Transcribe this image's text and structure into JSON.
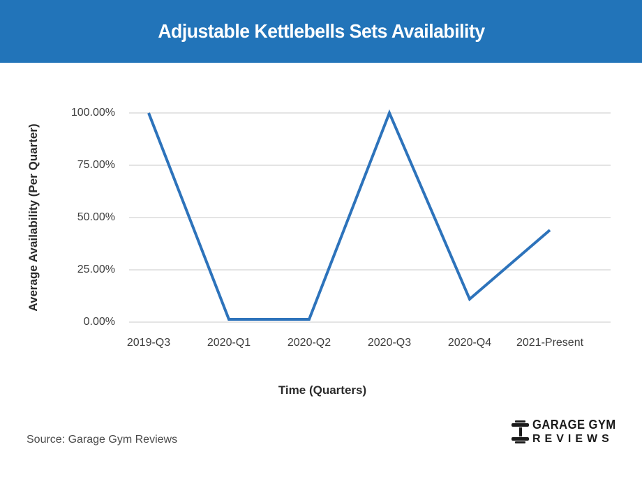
{
  "header": {
    "title": "Adjustable Kettlebells Sets Availability",
    "bg_color": "#2274b9",
    "text_color": "#ffffff"
  },
  "chart_data": {
    "type": "line",
    "title": "Adjustable Kettlebells Sets Availability",
    "categories": [
      "2019-Q3",
      "2020-Q1",
      "2020-Q2",
      "2020-Q3",
      "2020-Q4",
      "2021-Present"
    ],
    "series": [
      {
        "name": "Average Availability",
        "values": [
          100,
          0,
          0,
          100,
          11,
          44
        ]
      }
    ],
    "values_unit": "percent",
    "xlabel": "Time (Quarters)",
    "ylabel": "Average Availability (Per Quarter)",
    "ylim": [
      0,
      100
    ],
    "ytick_values": [
      0,
      25,
      50,
      75,
      100
    ],
    "ytick_labels": [
      "0.00%",
      "25.00%",
      "50.00%",
      "75.00%",
      "100.00%"
    ],
    "grid": true,
    "legend_position": "none",
    "line_color": "#2d73bb",
    "gridline_color": "#e4e4e4",
    "tick_text_color": "#3d3d3d"
  },
  "footer": {
    "source": "Source: Garage Gym Reviews",
    "logo": {
      "line1": "GARAGE GYM",
      "line2": "REVIEWS",
      "icon": "dumbbell-icon",
      "color": "#1b1b1b"
    }
  }
}
